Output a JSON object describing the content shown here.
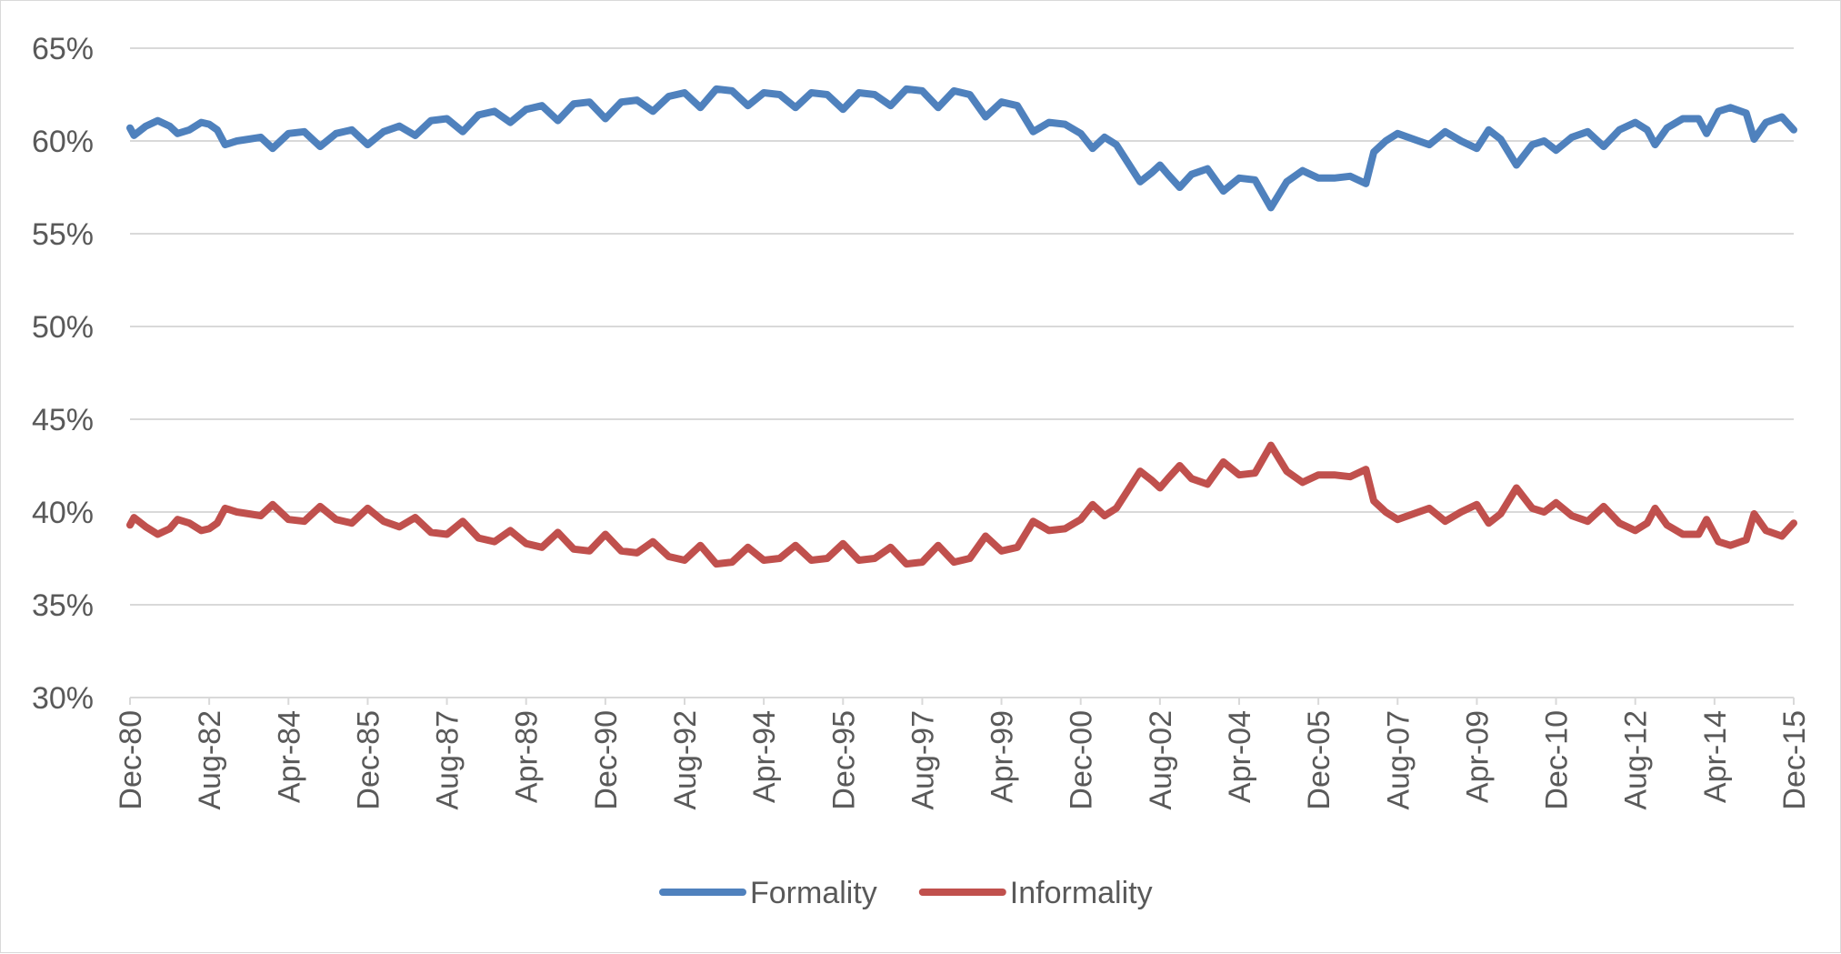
{
  "chart_data": {
    "type": "line",
    "ylim": [
      0.3,
      0.65
    ],
    "y_ticks": [
      0.3,
      0.35,
      0.4,
      0.45,
      0.5,
      0.55,
      0.6,
      0.65
    ],
    "y_tick_labels": [
      "30%",
      "35%",
      "40%",
      "45%",
      "50%",
      "55%",
      "60%",
      "65%"
    ],
    "x_tick_labels": [
      "Dec-80",
      "Aug-82",
      "Apr-84",
      "Dec-85",
      "Aug-87",
      "Apr-89",
      "Dec-90",
      "Aug-92",
      "Apr-94",
      "Dec-95",
      "Aug-97",
      "Apr-99",
      "Dec-00",
      "Aug-02",
      "Apr-04",
      "Dec-05",
      "Aug-07",
      "Apr-09",
      "Dec-10",
      "Aug-12",
      "Apr-14",
      "Dec-15"
    ],
    "x_tick_dates": [
      "1980-12",
      "1982-08",
      "1984-04",
      "1985-12",
      "1987-08",
      "1989-04",
      "1990-12",
      "1992-08",
      "1994-04",
      "1995-12",
      "1997-08",
      "1999-04",
      "2000-12",
      "2002-08",
      "2004-04",
      "2005-12",
      "2007-08",
      "2009-04",
      "2010-12",
      "2012-08",
      "2014-04",
      "2015-12"
    ],
    "x_range": [
      "1980-12",
      "2015-12"
    ],
    "grid": "horizontal",
    "legend_position": "bottom",
    "series": [
      {
        "name": "Formality",
        "color": "#4f81bd",
        "points": [
          [
            "1980-12",
            0.607
          ],
          [
            "1981-01",
            0.603
          ],
          [
            "1981-04",
            0.608
          ],
          [
            "1981-07",
            0.611
          ],
          [
            "1981-10",
            0.608
          ],
          [
            "1981-12",
            0.604
          ],
          [
            "1982-03",
            0.606
          ],
          [
            "1982-06",
            0.61
          ],
          [
            "1982-08",
            0.609
          ],
          [
            "1982-10",
            0.606
          ],
          [
            "1982-12",
            0.598
          ],
          [
            "1983-03",
            0.6
          ],
          [
            "1983-06",
            0.601
          ],
          [
            "1983-09",
            0.602
          ],
          [
            "1983-12",
            0.596
          ],
          [
            "1984-04",
            0.604
          ],
          [
            "1984-08",
            0.605
          ],
          [
            "1984-12",
            0.597
          ],
          [
            "1985-04",
            0.604
          ],
          [
            "1985-08",
            0.606
          ],
          [
            "1985-12",
            0.598
          ],
          [
            "1986-04",
            0.605
          ],
          [
            "1986-08",
            0.608
          ],
          [
            "1986-12",
            0.603
          ],
          [
            "1987-04",
            0.611
          ],
          [
            "1987-08",
            0.612
          ],
          [
            "1987-12",
            0.605
          ],
          [
            "1988-04",
            0.614
          ],
          [
            "1988-08",
            0.616
          ],
          [
            "1988-12",
            0.61
          ],
          [
            "1989-04",
            0.617
          ],
          [
            "1989-08",
            0.619
          ],
          [
            "1989-12",
            0.611
          ],
          [
            "1990-04",
            0.62
          ],
          [
            "1990-08",
            0.621
          ],
          [
            "1990-12",
            0.612
          ],
          [
            "1991-04",
            0.621
          ],
          [
            "1991-08",
            0.622
          ],
          [
            "1991-12",
            0.616
          ],
          [
            "1992-04",
            0.624
          ],
          [
            "1992-08",
            0.626
          ],
          [
            "1992-12",
            0.618
          ],
          [
            "1993-04",
            0.628
          ],
          [
            "1993-08",
            0.627
          ],
          [
            "1993-12",
            0.619
          ],
          [
            "1994-04",
            0.626
          ],
          [
            "1994-08",
            0.625
          ],
          [
            "1994-12",
            0.618
          ],
          [
            "1995-04",
            0.626
          ],
          [
            "1995-08",
            0.625
          ],
          [
            "1995-12",
            0.617
          ],
          [
            "1996-04",
            0.626
          ],
          [
            "1996-08",
            0.625
          ],
          [
            "1996-12",
            0.619
          ],
          [
            "1997-04",
            0.628
          ],
          [
            "1997-08",
            0.627
          ],
          [
            "1997-12",
            0.618
          ],
          [
            "1998-04",
            0.627
          ],
          [
            "1998-08",
            0.625
          ],
          [
            "1998-12",
            0.613
          ],
          [
            "1999-04",
            0.621
          ],
          [
            "1999-08",
            0.619
          ],
          [
            "1999-12",
            0.605
          ],
          [
            "2000-04",
            0.61
          ],
          [
            "2000-08",
            0.609
          ],
          [
            "2000-12",
            0.604
          ],
          [
            "2001-03",
            0.596
          ],
          [
            "2001-06",
            0.602
          ],
          [
            "2001-09",
            0.598
          ],
          [
            "2001-12",
            0.588
          ],
          [
            "2002-03",
            0.578
          ],
          [
            "2002-06",
            0.583
          ],
          [
            "2002-08",
            0.587
          ],
          [
            "2002-10",
            0.582
          ],
          [
            "2003-01",
            0.575
          ],
          [
            "2003-04",
            0.582
          ],
          [
            "2003-08",
            0.585
          ],
          [
            "2003-12",
            0.573
          ],
          [
            "2004-04",
            0.58
          ],
          [
            "2004-08",
            0.579
          ],
          [
            "2004-12",
            0.564
          ],
          [
            "2005-04",
            0.578
          ],
          [
            "2005-08",
            0.584
          ],
          [
            "2005-12",
            0.58
          ],
          [
            "2006-04",
            0.58
          ],
          [
            "2006-08",
            0.581
          ],
          [
            "2006-12",
            0.577
          ],
          [
            "2007-02",
            0.594
          ],
          [
            "2007-05",
            0.6
          ],
          [
            "2007-08",
            0.604
          ],
          [
            "2007-12",
            0.601
          ],
          [
            "2008-04",
            0.598
          ],
          [
            "2008-08",
            0.605
          ],
          [
            "2008-12",
            0.6
          ],
          [
            "2009-04",
            0.596
          ],
          [
            "2009-07",
            0.606
          ],
          [
            "2009-10",
            0.601
          ],
          [
            "2010-02",
            0.587
          ],
          [
            "2010-06",
            0.598
          ],
          [
            "2010-09",
            0.6
          ],
          [
            "2010-12",
            0.595
          ],
          [
            "2011-04",
            0.602
          ],
          [
            "2011-08",
            0.605
          ],
          [
            "2011-12",
            0.597
          ],
          [
            "2012-04",
            0.606
          ],
          [
            "2012-08",
            0.61
          ],
          [
            "2012-11",
            0.606
          ],
          [
            "2013-01",
            0.598
          ],
          [
            "2013-04",
            0.607
          ],
          [
            "2013-08",
            0.612
          ],
          [
            "2013-12",
            0.612
          ],
          [
            "2014-02",
            0.604
          ],
          [
            "2014-05",
            0.616
          ],
          [
            "2014-08",
            0.618
          ],
          [
            "2014-12",
            0.615
          ],
          [
            "2015-02",
            0.601
          ],
          [
            "2015-05",
            0.61
          ],
          [
            "2015-09",
            0.613
          ],
          [
            "2015-12",
            0.606
          ]
        ]
      },
      {
        "name": "Informality",
        "color": "#c0504d",
        "points": [
          [
            "1980-12",
            0.393
          ],
          [
            "1981-01",
            0.397
          ],
          [
            "1981-04",
            0.392
          ],
          [
            "1981-07",
            0.388
          ],
          [
            "1981-10",
            0.391
          ],
          [
            "1981-12",
            0.396
          ],
          [
            "1982-03",
            0.394
          ],
          [
            "1982-06",
            0.39
          ],
          [
            "1982-08",
            0.391
          ],
          [
            "1982-10",
            0.394
          ],
          [
            "1982-12",
            0.402
          ],
          [
            "1983-03",
            0.4
          ],
          [
            "1983-06",
            0.399
          ],
          [
            "1983-09",
            0.398
          ],
          [
            "1983-12",
            0.404
          ],
          [
            "1984-04",
            0.396
          ],
          [
            "1984-08",
            0.395
          ],
          [
            "1984-12",
            0.403
          ],
          [
            "1985-04",
            0.396
          ],
          [
            "1985-08",
            0.394
          ],
          [
            "1985-12",
            0.402
          ],
          [
            "1986-04",
            0.395
          ],
          [
            "1986-08",
            0.392
          ],
          [
            "1986-12",
            0.397
          ],
          [
            "1987-04",
            0.389
          ],
          [
            "1987-08",
            0.388
          ],
          [
            "1987-12",
            0.395
          ],
          [
            "1988-04",
            0.386
          ],
          [
            "1988-08",
            0.384
          ],
          [
            "1988-12",
            0.39
          ],
          [
            "1989-04",
            0.383
          ],
          [
            "1989-08",
            0.381
          ],
          [
            "1989-12",
            0.389
          ],
          [
            "1990-04",
            0.38
          ],
          [
            "1990-08",
            0.379
          ],
          [
            "1990-12",
            0.388
          ],
          [
            "1991-04",
            0.379
          ],
          [
            "1991-08",
            0.378
          ],
          [
            "1991-12",
            0.384
          ],
          [
            "1992-04",
            0.376
          ],
          [
            "1992-08",
            0.374
          ],
          [
            "1992-12",
            0.382
          ],
          [
            "1993-04",
            0.372
          ],
          [
            "1993-08",
            0.373
          ],
          [
            "1993-12",
            0.381
          ],
          [
            "1994-04",
            0.374
          ],
          [
            "1994-08",
            0.375
          ],
          [
            "1994-12",
            0.382
          ],
          [
            "1995-04",
            0.374
          ],
          [
            "1995-08",
            0.375
          ],
          [
            "1995-12",
            0.383
          ],
          [
            "1996-04",
            0.374
          ],
          [
            "1996-08",
            0.375
          ],
          [
            "1996-12",
            0.381
          ],
          [
            "1997-04",
            0.372
          ],
          [
            "1997-08",
            0.373
          ],
          [
            "1997-12",
            0.382
          ],
          [
            "1998-04",
            0.373
          ],
          [
            "1998-08",
            0.375
          ],
          [
            "1998-12",
            0.387
          ],
          [
            "1999-04",
            0.379
          ],
          [
            "1999-08",
            0.381
          ],
          [
            "1999-12",
            0.395
          ],
          [
            "2000-04",
            0.39
          ],
          [
            "2000-08",
            0.391
          ],
          [
            "2000-12",
            0.396
          ],
          [
            "2001-03",
            0.404
          ],
          [
            "2001-06",
            0.398
          ],
          [
            "2001-09",
            0.402
          ],
          [
            "2001-12",
            0.412
          ],
          [
            "2002-03",
            0.422
          ],
          [
            "2002-06",
            0.417
          ],
          [
            "2002-08",
            0.413
          ],
          [
            "2002-10",
            0.418
          ],
          [
            "2003-01",
            0.425
          ],
          [
            "2003-04",
            0.418
          ],
          [
            "2003-08",
            0.415
          ],
          [
            "2003-12",
            0.427
          ],
          [
            "2004-04",
            0.42
          ],
          [
            "2004-08",
            0.421
          ],
          [
            "2004-12",
            0.436
          ],
          [
            "2005-04",
            0.422
          ],
          [
            "2005-08",
            0.416
          ],
          [
            "2005-12",
            0.42
          ],
          [
            "2006-04",
            0.42
          ],
          [
            "2006-08",
            0.419
          ],
          [
            "2006-12",
            0.423
          ],
          [
            "2007-02",
            0.406
          ],
          [
            "2007-05",
            0.4
          ],
          [
            "2007-08",
            0.396
          ],
          [
            "2007-12",
            0.399
          ],
          [
            "2008-04",
            0.402
          ],
          [
            "2008-08",
            0.395
          ],
          [
            "2008-12",
            0.4
          ],
          [
            "2009-04",
            0.404
          ],
          [
            "2009-07",
            0.394
          ],
          [
            "2009-10",
            0.399
          ],
          [
            "2010-02",
            0.413
          ],
          [
            "2010-06",
            0.402
          ],
          [
            "2010-09",
            0.4
          ],
          [
            "2010-12",
            0.405
          ],
          [
            "2011-04",
            0.398
          ],
          [
            "2011-08",
            0.395
          ],
          [
            "2011-12",
            0.403
          ],
          [
            "2012-04",
            0.394
          ],
          [
            "2012-08",
            0.39
          ],
          [
            "2012-11",
            0.394
          ],
          [
            "2013-01",
            0.402
          ],
          [
            "2013-04",
            0.393
          ],
          [
            "2013-08",
            0.388
          ],
          [
            "2013-12",
            0.388
          ],
          [
            "2014-02",
            0.396
          ],
          [
            "2014-05",
            0.384
          ],
          [
            "2014-08",
            0.382
          ],
          [
            "2014-12",
            0.385
          ],
          [
            "2015-02",
            0.399
          ],
          [
            "2015-05",
            0.39
          ],
          [
            "2015-09",
            0.387
          ],
          [
            "2015-12",
            0.394
          ]
        ]
      }
    ]
  }
}
